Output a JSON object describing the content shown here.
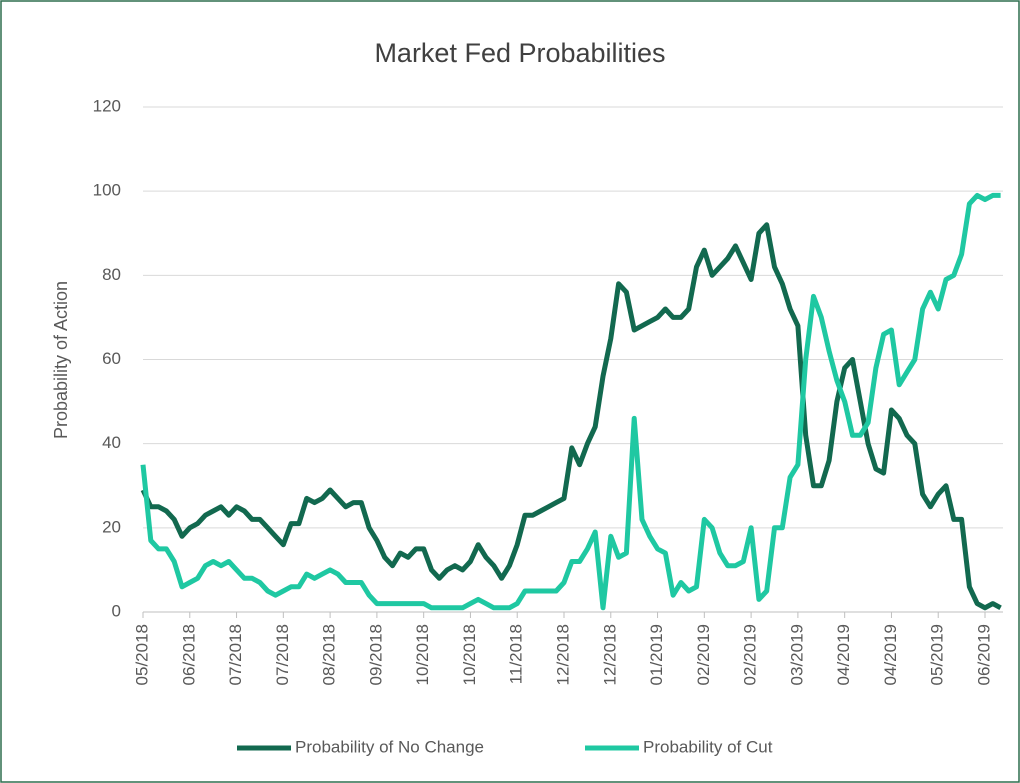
{
  "chart_data": {
    "type": "line",
    "title": "Market Fed Probabilities",
    "y_label": "Probability of Action",
    "categories": [
      "05/2018",
      null,
      null,
      null,
      null,
      null,
      "06/2018",
      null,
      null,
      null,
      null,
      null,
      "07/2018",
      null,
      null,
      null,
      null,
      null,
      "07/2018",
      null,
      null,
      null,
      null,
      null,
      "08/2018",
      null,
      null,
      null,
      null,
      null,
      "09/2018",
      null,
      null,
      null,
      null,
      null,
      "10/2018",
      null,
      null,
      null,
      null,
      null,
      "10/2018",
      null,
      null,
      null,
      null,
      null,
      "11/2018",
      null,
      null,
      null,
      null,
      null,
      "12/2018",
      null,
      null,
      null,
      null,
      null,
      "12/2018",
      null,
      null,
      null,
      null,
      null,
      "01/2019",
      null,
      null,
      null,
      null,
      null,
      "02/2019",
      null,
      null,
      null,
      null,
      null,
      "02/2019",
      null,
      null,
      null,
      null,
      null,
      "03/2019",
      null,
      null,
      null,
      null,
      null,
      "04/2019",
      null,
      null,
      null,
      null,
      null,
      "04/2019",
      null,
      null,
      null,
      null,
      null,
      "05/2019",
      null,
      null,
      null,
      null,
      null,
      "06/2019",
      null,
      null
    ],
    "series": [
      {
        "name": "Probability of No Change",
        "color": "#12694f",
        "values": [
          29,
          25,
          25,
          24,
          22,
          18,
          20,
          21,
          23,
          24,
          25,
          23,
          25,
          24,
          22,
          22,
          20,
          18,
          16,
          21,
          21,
          27,
          26,
          27,
          29,
          27,
          25,
          26,
          26,
          20,
          17,
          13,
          11,
          14,
          13,
          15,
          15,
          10,
          8,
          10,
          11,
          10,
          12,
          16,
          13,
          11,
          8,
          11,
          16,
          23,
          23,
          24,
          25,
          26,
          27,
          39,
          35,
          40,
          44,
          56,
          65,
          78,
          76,
          67,
          68,
          69,
          70,
          72,
          70,
          70,
          72,
          82,
          86,
          80,
          82,
          84,
          87,
          83,
          79,
          90,
          92,
          82,
          78,
          72,
          68,
          42,
          30,
          30,
          36,
          50,
          58,
          60,
          50,
          40,
          34,
          33,
          48,
          46,
          42,
          40,
          28,
          25,
          28,
          30,
          22,
          22,
          6,
          2,
          1,
          2,
          1
        ]
      },
      {
        "name": "Probability of Cut",
        "color": "#1fc8a2",
        "values": [
          35,
          17,
          15,
          15,
          12,
          6,
          7,
          8,
          11,
          12,
          11,
          12,
          10,
          8,
          8,
          7,
          5,
          4,
          5,
          6,
          6,
          9,
          8,
          9,
          10,
          9,
          7,
          7,
          7,
          4,
          2,
          2,
          2,
          2,
          2,
          2,
          2,
          1,
          1,
          1,
          1,
          1,
          2,
          3,
          2,
          1,
          1,
          1,
          2,
          5,
          5,
          5,
          5,
          5,
          7,
          12,
          12,
          15,
          19,
          1,
          18,
          13,
          14,
          46,
          22,
          18,
          15,
          14,
          4,
          7,
          5,
          6,
          22,
          20,
          14,
          11,
          11,
          12,
          20,
          3,
          5,
          20,
          20,
          32,
          35,
          60,
          75,
          70,
          62,
          55,
          50,
          42,
          42,
          45,
          58,
          66,
          67,
          54,
          57,
          60,
          72,
          76,
          72,
          79,
          80,
          85,
          97,
          99,
          98,
          99,
          99
        ]
      }
    ],
    "ylim": [
      0,
      120
    ],
    "yticks": [
      0,
      20,
      40,
      60,
      80,
      100,
      120
    ],
    "grid": true,
    "legend": "bottom"
  }
}
